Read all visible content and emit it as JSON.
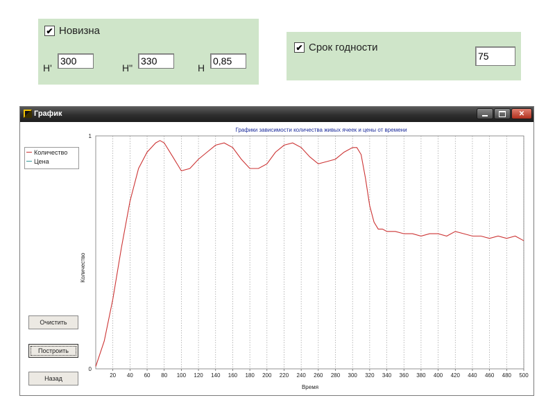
{
  "novizna": {
    "label": "Новизна",
    "checked": true,
    "h1_label": "H'",
    "h1_value": "300",
    "h2_label": "H\"",
    "h2_value": "330",
    "h_label": "H",
    "h_value": "0,85"
  },
  "srok": {
    "label": "Срок годности",
    "checked": true,
    "value": "75"
  },
  "window": {
    "title": "График",
    "buttons": {
      "clear": "Очистить",
      "build": "Построить",
      "back": "Назад"
    },
    "legend": [
      {
        "name": "Количество",
        "color": "#cc3333"
      },
      {
        "name": "Цена",
        "color": "#339999"
      }
    ]
  },
  "chart_data": {
    "type": "line",
    "title": "Графики зависимости количества живых ячеек и цены от времени",
    "xlabel": "Время",
    "ylabel": "Количество",
    "xlim": [
      0,
      500
    ],
    "ylim": [
      0,
      1
    ],
    "x_ticks": [
      "20",
      "40",
      "60",
      "80",
      "100",
      "120",
      "140",
      "160",
      "180",
      "200",
      "220",
      "240",
      "260",
      "280",
      "300",
      "320",
      "340",
      "360",
      "380",
      "400",
      "420",
      "440",
      "460",
      "480",
      "500"
    ],
    "y_ticks": [
      "0",
      "1"
    ],
    "grid": "vertical dotted",
    "legend_position": "left",
    "series": [
      {
        "name": "Количество",
        "color": "#cc3333",
        "x": [
          0,
          10,
          20,
          30,
          40,
          50,
          60,
          70,
          75,
          80,
          90,
          100,
          110,
          120,
          130,
          140,
          150,
          160,
          170,
          180,
          190,
          200,
          210,
          220,
          230,
          240,
          250,
          260,
          270,
          280,
          290,
          300,
          305,
          310,
          315,
          320,
          325,
          330,
          335,
          340,
          350,
          360,
          370,
          380,
          390,
          400,
          410,
          420,
          430,
          440,
          450,
          460,
          470,
          480,
          490,
          500
        ],
        "y": [
          0.01,
          0.12,
          0.3,
          0.52,
          0.72,
          0.86,
          0.93,
          0.97,
          0.98,
          0.97,
          0.91,
          0.85,
          0.86,
          0.9,
          0.93,
          0.96,
          0.97,
          0.95,
          0.9,
          0.86,
          0.86,
          0.88,
          0.93,
          0.96,
          0.97,
          0.95,
          0.91,
          0.88,
          0.89,
          0.9,
          0.93,
          0.95,
          0.95,
          0.92,
          0.82,
          0.7,
          0.63,
          0.6,
          0.6,
          0.59,
          0.59,
          0.58,
          0.58,
          0.57,
          0.58,
          0.58,
          0.57,
          0.59,
          0.58,
          0.57,
          0.57,
          0.56,
          0.57,
          0.56,
          0.57,
          0.55
        ]
      },
      {
        "name": "Цена",
        "color": "#339999",
        "x": [],
        "y": []
      }
    ]
  }
}
